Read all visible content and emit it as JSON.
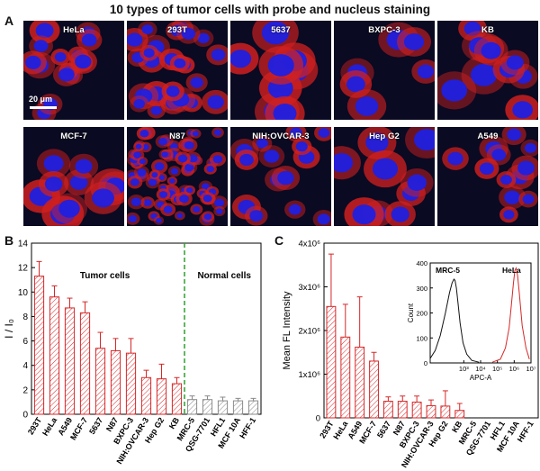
{
  "figure_title": "10 types of tumor cells with probe and nucleus staining",
  "panels": {
    "a": {
      "letter": "A",
      "tiles": [
        "HeLa",
        "293T",
        "5637",
        "BXPC-3",
        "KB",
        "MCF-7",
        "N87",
        "NIH:OVCAR-3",
        "Hep G2",
        "A549"
      ],
      "scale_bar": "20 μm"
    },
    "b": {
      "letter": "B"
    },
    "c": {
      "letter": "C"
    }
  },
  "colors": {
    "bar": "#d62728",
    "hatch_normal": "#8a8a8a",
    "divider": "#2ca02c",
    "nucleus": "#2020e0",
    "probe": "#d02020"
  },
  "chart_data": [
    {
      "id": "B",
      "type": "bar",
      "ylabel": "I / I₀",
      "ylim": [
        0,
        14
      ],
      "yticks": [
        0,
        2,
        4,
        6,
        8,
        10,
        12,
        14
      ],
      "categories": [
        "293T",
        "HeLa",
        "A549",
        "MCF-7",
        "5637",
        "N87",
        "BXPC-3",
        "NIH:OVCAR-3",
        "Hep G2",
        "KB",
        "MRC-5",
        "QSG-7701",
        "HFL1",
        "MCF 10A",
        "HFF-1"
      ],
      "values": [
        11.3,
        9.6,
        8.7,
        8.3,
        5.4,
        5.2,
        5.0,
        3.0,
        2.9,
        2.5,
        1.2,
        1.2,
        1.1,
        1.1,
        1.1
      ],
      "errors": [
        1.2,
        0.9,
        0.8,
        0.9,
        1.3,
        1.0,
        1.2,
        0.6,
        1.2,
        0.5,
        0.3,
        0.3,
        0.3,
        0.2,
        0.2
      ],
      "groups": [
        {
          "name": "Tumor cells",
          "count": 10,
          "color": "#d62728"
        },
        {
          "name": "Normal cells",
          "count": 5,
          "color": "#8a8a8a"
        }
      ],
      "grid": false
    },
    {
      "id": "C",
      "type": "bar",
      "ylabel": "Mean FL Intensity",
      "ylim": [
        0,
        4000000
      ],
      "yticks": [
        "0",
        "1x10⁶",
        "2x10⁶",
        "3x10⁶",
        "4x10⁶"
      ],
      "categories": [
        "293T",
        "HeLa",
        "A549",
        "MCF-7",
        "5637",
        "N87",
        "BXPC-3",
        "NIH:OVCAR-3",
        "Hep G2",
        "KB",
        "MRC-5",
        "QSG-7701",
        "HFL1",
        "MCF 10A",
        "HFF-1"
      ],
      "values": [
        2550000,
        1850000,
        1620000,
        1300000,
        380000,
        380000,
        360000,
        280000,
        270000,
        170000,
        0,
        0,
        0,
        0,
        0
      ],
      "errors": [
        1200000,
        750000,
        1150000,
        200000,
        100000,
        120000,
        140000,
        130000,
        350000,
        160000,
        0,
        0,
        0,
        0,
        0
      ],
      "grid": false
    },
    {
      "id": "C-inset",
      "type": "line",
      "xlabel": "APC-A",
      "ylabel": "Count",
      "xscale": "log",
      "xlim": [
        10,
        10000000
      ],
      "xticks": [
        "10³",
        "10⁴",
        "10⁵",
        "10⁶",
        "10⁷"
      ],
      "ylim": [
        0,
        400
      ],
      "yticks": [
        0,
        100,
        200,
        300,
        400
      ],
      "series": [
        {
          "name": "MRC-5",
          "color": "#111111",
          "x": [
            3,
            8,
            20,
            40,
            80,
            140,
            200,
            260,
            300,
            360,
            450,
            600,
            900,
            1500,
            3000,
            8000
          ],
          "y": [
            5,
            18,
            50,
            110,
            200,
            280,
            320,
            335,
            330,
            300,
            240,
            160,
            80,
            35,
            10,
            3
          ]
        },
        {
          "name": "HeLa",
          "color": "#d62728",
          "x": [
            50000,
            150000,
            300000,
            500000,
            700000,
            900000,
            1100000,
            1300000,
            1600000,
            2000000,
            3000000,
            5000000,
            8000000
          ],
          "y": [
            3,
            15,
            60,
            140,
            240,
            320,
            370,
            380,
            350,
            280,
            150,
            60,
            15
          ]
        }
      ]
    }
  ]
}
